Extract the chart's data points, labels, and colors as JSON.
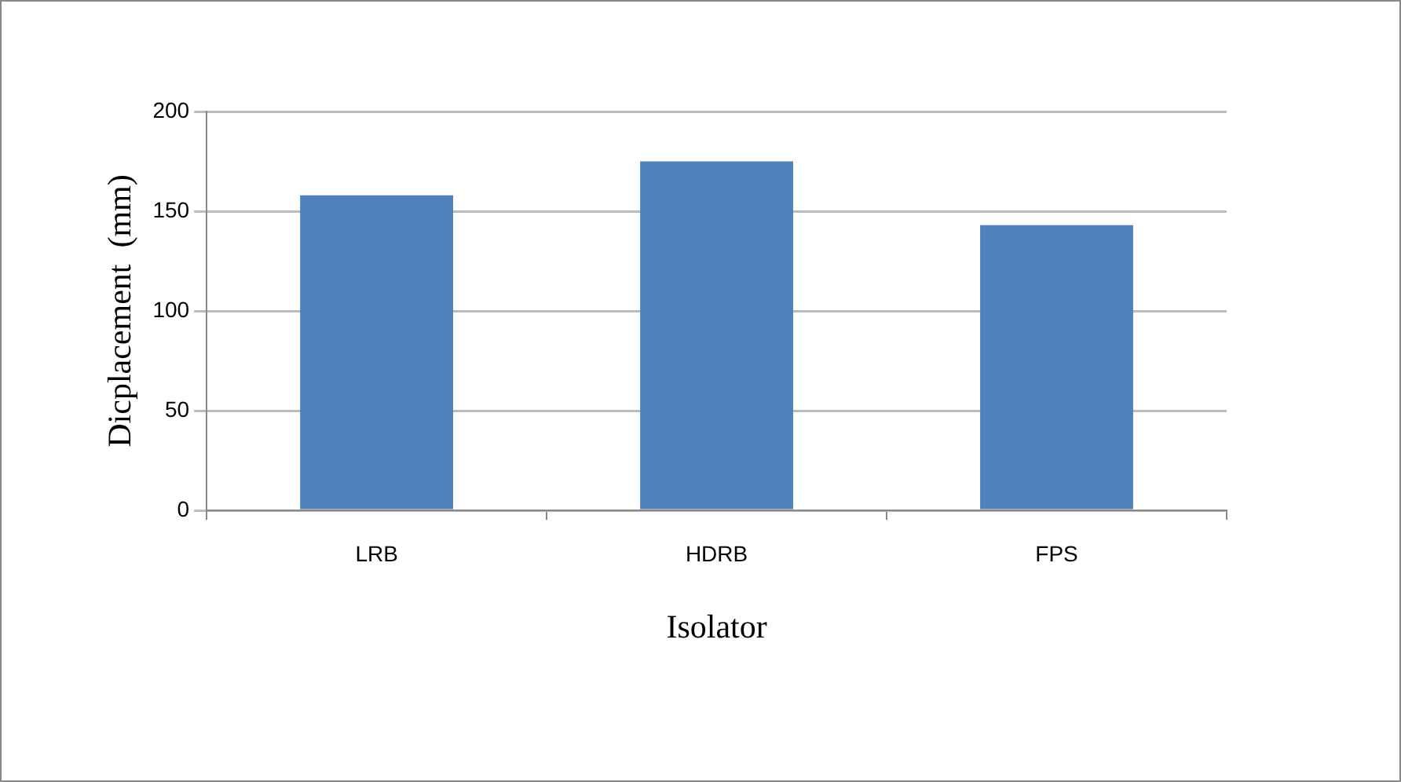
{
  "chart_data": {
    "type": "bar",
    "xlabel": "Isolator",
    "ylabel": "Dicplacement  (mm)",
    "categories": [
      "LRB",
      "HDRB",
      "FPS"
    ],
    "values": [
      158,
      175,
      143
    ],
    "color": "#4f81bd",
    "ylim": [
      0,
      200
    ],
    "yticks": [
      0,
      50,
      100,
      150,
      200
    ],
    "grid": "y",
    "legend": false
  }
}
